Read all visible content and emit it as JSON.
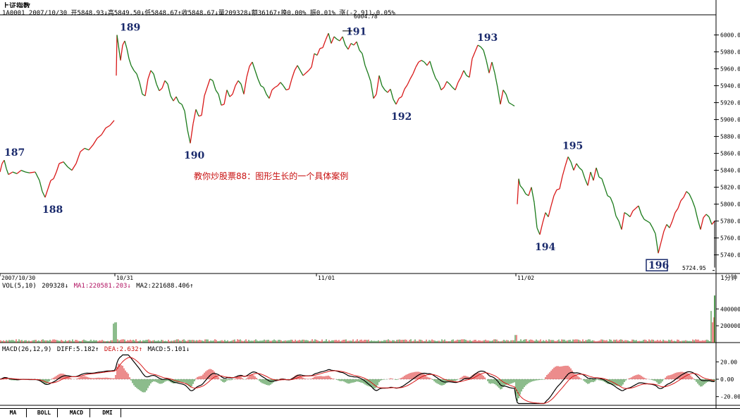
{
  "header": {
    "title": "上证指数",
    "stats": "1A0001 2007/10/30 开5848.93↓高5849.50↓低5848.67↑收5848.67↓量209328↓额36167↑换0.00% 振0.01% 涨(-2.91)-0.05%"
  },
  "indicators": {
    "vol_label": "VOL(5,10)",
    "vol_value": "209328↓",
    "vol_ma1": "MA1:220581.203↓",
    "vol_ma2": "MA2:221688.406↑",
    "macd_label": "MACD(26,12,9)",
    "macd_diff": "DIFF:5.182↑",
    "macd_dea": "DEA:2.632↑",
    "macd_value": "MACD:5.101↓"
  },
  "annotation": "教你炒股票88：图形生长的一个具体案例",
  "high_label": "6004.78",
  "last_price_label": "5724.95",
  "period_label": "1分钟",
  "tabs": [
    "MA",
    "BOLL",
    "MACD",
    "DMI"
  ],
  "colors": {
    "up": "#d81818",
    "down": "#1a7a1a",
    "wave_label": "#1a2a6c",
    "annotation": "#c81010"
  },
  "chart_data": {
    "type": "line",
    "series": [
      {
        "points": [
          [
            0,
            5838
          ],
          [
            3,
            5848
          ],
          [
            6,
            5852
          ],
          [
            9,
            5842
          ],
          [
            12,
            5835
          ],
          [
            18,
            5838
          ],
          [
            24,
            5836
          ],
          [
            30,
            5840
          ],
          [
            36,
            5838
          ],
          [
            42,
            5837
          ],
          [
            50,
            5838
          ],
          [
            56,
            5828
          ],
          [
            60,
            5815
          ],
          [
            64,
            5808
          ],
          [
            68,
            5818
          ],
          [
            72,
            5828
          ],
          [
            76,
            5830
          ],
          [
            80,
            5838
          ],
          [
            84,
            5848
          ],
          [
            90,
            5850
          ],
          [
            96,
            5844
          ],
          [
            102,
            5840
          ],
          [
            108,
            5848
          ],
          [
            114,
            5862
          ],
          [
            120,
            5866
          ],
          [
            126,
            5864
          ],
          [
            132,
            5870
          ],
          [
            138,
            5878
          ],
          [
            144,
            5882
          ],
          [
            150,
            5890
          ],
          [
            156,
            5893
          ],
          [
            162,
            5899
          ],
          [
            165,
            5952
          ],
          [
            166,
            6000
          ],
          [
            168,
            5988
          ],
          [
            171,
            5970
          ],
          [
            174,
            5988
          ],
          [
            177,
            5993
          ],
          [
            180,
            5984
          ],
          [
            183,
            5972
          ],
          [
            186,
            5964
          ],
          [
            190,
            5958
          ],
          [
            194,
            5954
          ],
          [
            198,
            5944
          ],
          [
            202,
            5930
          ],
          [
            206,
            5928
          ],
          [
            210,
            5948
          ],
          [
            214,
            5958
          ],
          [
            218,
            5954
          ],
          [
            222,
            5942
          ],
          [
            226,
            5934
          ],
          [
            230,
            5937
          ],
          [
            234,
            5946
          ],
          [
            238,
            5942
          ],
          [
            242,
            5928
          ],
          [
            246,
            5922
          ],
          [
            250,
            5927
          ],
          [
            254,
            5920
          ],
          [
            258,
            5918
          ],
          [
            262,
            5910
          ],
          [
            266,
            5888
          ],
          [
            270,
            5872
          ],
          [
            274,
            5895
          ],
          [
            278,
            5912
          ],
          [
            282,
            5904
          ],
          [
            286,
            5905
          ],
          [
            290,
            5928
          ],
          [
            294,
            5938
          ],
          [
            298,
            5948
          ],
          [
            302,
            5946
          ],
          [
            306,
            5935
          ],
          [
            310,
            5930
          ],
          [
            314,
            5917
          ],
          [
            318,
            5918
          ],
          [
            322,
            5935
          ],
          [
            326,
            5927
          ],
          [
            330,
            5930
          ],
          [
            334,
            5940
          ],
          [
            338,
            5946
          ],
          [
            342,
            5942
          ],
          [
            346,
            5930
          ],
          [
            350,
            5950
          ],
          [
            354,
            5963
          ],
          [
            358,
            5968
          ],
          [
            362,
            5958
          ],
          [
            366,
            5948
          ],
          [
            370,
            5940
          ],
          [
            374,
            5938
          ],
          [
            378,
            5930
          ],
          [
            382,
            5925
          ],
          [
            386,
            5935
          ],
          [
            390,
            5938
          ],
          [
            394,
            5940
          ],
          [
            398,
            5944
          ],
          [
            402,
            5940
          ],
          [
            406,
            5935
          ],
          [
            410,
            5936
          ],
          [
            414,
            5948
          ],
          [
            418,
            5958
          ],
          [
            422,
            5964
          ],
          [
            426,
            5958
          ],
          [
            430,
            5952
          ],
          [
            434,
            5955
          ],
          [
            438,
            5958
          ],
          [
            442,
            5962
          ],
          [
            446,
            5978
          ],
          [
            450,
            5976
          ],
          [
            454,
            5984
          ],
          [
            458,
            5985
          ],
          [
            462,
            5994
          ],
          [
            466,
            6002
          ],
          [
            470,
            5990
          ],
          [
            474,
            5998
          ],
          [
            478,
            5995
          ],
          [
            482,
            5993
          ],
          [
            486,
            5998
          ],
          [
            490,
            5988
          ],
          [
            494,
            5983
          ],
          [
            498,
            5990
          ],
          [
            502,
            5988
          ],
          [
            506,
            5992
          ],
          [
            510,
            5982
          ],
          [
            514,
            5978
          ],
          [
            518,
            5964
          ],
          [
            522,
            5955
          ],
          [
            526,
            5945
          ],
          [
            530,
            5925
          ],
          [
            534,
            5930
          ],
          [
            538,
            5952
          ],
          [
            542,
            5940
          ],
          [
            546,
            5935
          ],
          [
            550,
            5932
          ],
          [
            554,
            5936
          ],
          [
            558,
            5924
          ],
          [
            562,
            5918
          ],
          [
            566,
            5925
          ],
          [
            570,
            5927
          ],
          [
            574,
            5936
          ],
          [
            578,
            5941
          ],
          [
            582,
            5948
          ],
          [
            586,
            5954
          ],
          [
            590,
            5962
          ],
          [
            594,
            5968
          ],
          [
            598,
            5970
          ],
          [
            602,
            5968
          ],
          [
            606,
            5964
          ],
          [
            610,
            5969
          ],
          [
            614,
            5958
          ],
          [
            618,
            5949
          ],
          [
            622,
            5944
          ],
          [
            626,
            5935
          ],
          [
            630,
            5938
          ],
          [
            634,
            5945
          ],
          [
            638,
            5942
          ],
          [
            642,
            5938
          ],
          [
            646,
            5935
          ],
          [
            650,
            5944
          ],
          [
            654,
            5950
          ],
          [
            658,
            5958
          ],
          [
            662,
            5952
          ],
          [
            666,
            5950
          ],
          [
            670,
            5972
          ],
          [
            674,
            5980
          ],
          [
            678,
            5988
          ],
          [
            682,
            5986
          ],
          [
            686,
            5982
          ],
          [
            690,
            5970
          ],
          [
            694,
            5955
          ],
          [
            698,
            5968
          ],
          [
            702,
            5955
          ],
          [
            706,
            5938
          ],
          [
            710,
            5918
          ],
          [
            714,
            5935
          ],
          [
            718,
            5930
          ],
          [
            722,
            5920
          ],
          [
            726,
            5918
          ],
          [
            730,
            5916
          ],
          [
            732,
            5768
          ],
          [
            734,
            5800
          ],
          [
            736,
            5830
          ],
          [
            738,
            5822
          ],
          [
            742,
            5818
          ],
          [
            746,
            5812
          ],
          [
            750,
            5810
          ],
          [
            754,
            5820
          ],
          [
            758,
            5802
          ],
          [
            762,
            5772
          ],
          [
            766,
            5764
          ],
          [
            770,
            5778
          ],
          [
            774,
            5790
          ],
          [
            778,
            5785
          ],
          [
            782,
            5798
          ],
          [
            786,
            5810
          ],
          [
            790,
            5817
          ],
          [
            794,
            5818
          ],
          [
            798,
            5833
          ],
          [
            802,
            5845
          ],
          [
            806,
            5856
          ],
          [
            810,
            5850
          ],
          [
            814,
            5840
          ],
          [
            818,
            5848
          ],
          [
            822,
            5843
          ],
          [
            826,
            5840
          ],
          [
            830,
            5830
          ],
          [
            834,
            5822
          ],
          [
            838,
            5838
          ],
          [
            842,
            5828
          ],
          [
            846,
            5843
          ],
          [
            850,
            5832
          ],
          [
            854,
            5830
          ],
          [
            858,
            5820
          ],
          [
            862,
            5810
          ],
          [
            866,
            5808
          ],
          [
            870,
            5800
          ],
          [
            874,
            5786
          ],
          [
            878,
            5780
          ],
          [
            882,
            5770
          ],
          [
            886,
            5790
          ],
          [
            890,
            5788
          ],
          [
            894,
            5785
          ],
          [
            898,
            5792
          ],
          [
            902,
            5795
          ],
          [
            906,
            5798
          ],
          [
            910,
            5788
          ],
          [
            914,
            5782
          ],
          [
            918,
            5780
          ],
          [
            922,
            5778
          ],
          [
            926,
            5772
          ],
          [
            930,
            5765
          ],
          [
            934,
            5742
          ],
          [
            938,
            5755
          ],
          [
            942,
            5768
          ],
          [
            946,
            5776
          ],
          [
            950,
            5772
          ],
          [
            954,
            5780
          ],
          [
            958,
            5790
          ],
          [
            962,
            5795
          ],
          [
            966,
            5804
          ],
          [
            970,
            5808
          ],
          [
            974,
            5815
          ],
          [
            978,
            5812
          ],
          [
            982,
            5805
          ],
          [
            986,
            5796
          ],
          [
            990,
            5782
          ],
          [
            994,
            5770
          ],
          [
            998,
            5784
          ],
          [
            1002,
            5788
          ],
          [
            1006,
            5785
          ],
          [
            1010,
            5776
          ],
          [
            1014,
            5780
          ]
        ]
      }
    ],
    "yticks": [
      5740,
      5760,
      5780,
      5800,
      5820,
      5840,
      5860,
      5880,
      5900,
      5920,
      5940,
      5960,
      5980,
      6000
    ],
    "ylim": [
      5718,
      6023
    ],
    "xlim": [
      0,
      1016
    ],
    "x_dates": [
      {
        "x": 0,
        "label": "2007/10/30"
      },
      {
        "x": 163,
        "label": "10/31"
      },
      {
        "x": 449,
        "label": "11/01"
      },
      {
        "x": 732,
        "label": "11/02"
      }
    ],
    "wave_labels": [
      {
        "label": "187",
        "x": 18,
        "price": 5852
      },
      {
        "label": "188",
        "x": 72,
        "price": 5808
      },
      {
        "label": "189",
        "x": 182,
        "price": 6000
      },
      {
        "label": "190",
        "x": 273,
        "price": 5872
      },
      {
        "label": "191",
        "x": 503,
        "price": 5995
      },
      {
        "label": "192",
        "x": 567,
        "price": 5918
      },
      {
        "label": "193",
        "x": 689,
        "price": 5988
      },
      {
        "label": "194",
        "x": 771,
        "price": 5764
      },
      {
        "label": "195",
        "x": 810,
        "price": 5860
      },
      {
        "label": "196",
        "x": 932,
        "price": 5742
      }
    ],
    "volume": {
      "ylim": [
        0,
        620000
      ],
      "yticks": [
        200000,
        400000
      ],
      "ytick_labels": [
        "200000",
        "400000"
      ]
    },
    "macd": {
      "ylim": [
        -30,
        30
      ],
      "yticks": [
        20,
        0,
        -20
      ],
      "ytick_labels": [
        "20.00",
        "0.00",
        "-20.00"
      ]
    }
  }
}
